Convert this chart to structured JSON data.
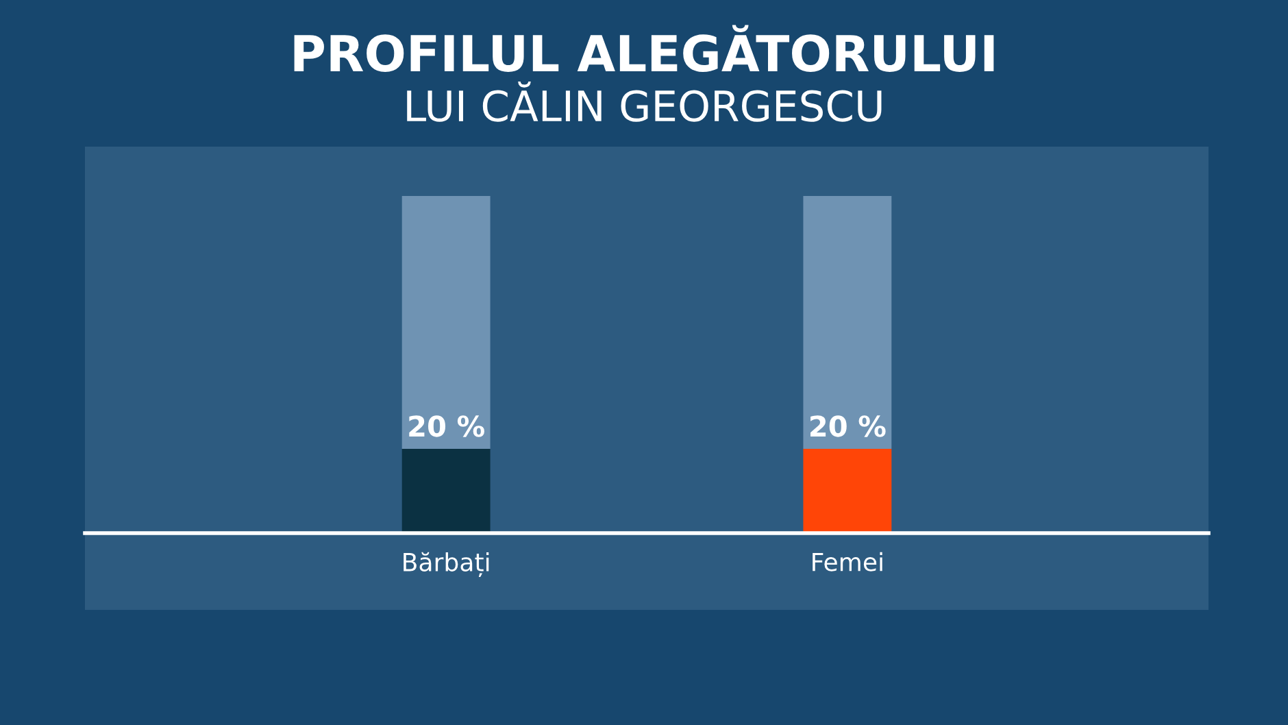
{
  "chart_data": {
    "type": "bar",
    "title": "PROFILUL ALEGĂTORULUI",
    "subtitle": "LUI CĂLIN GEORGESCU",
    "categories": [
      "Bărbați",
      "Femei"
    ],
    "stacked": true,
    "series": [
      {
        "colors": [
          "#0b3142",
          "#ff4507"
        ],
        "values": [
          20,
          20
        ],
        "value_labels": [
          "20 %",
          "20 %"
        ]
      },
      {
        "color": "#6f93b3",
        "values": [
          60,
          60
        ]
      }
    ],
    "ylim": [
      0,
      80
    ],
    "tick_labels": "x",
    "legend": false
  }
}
